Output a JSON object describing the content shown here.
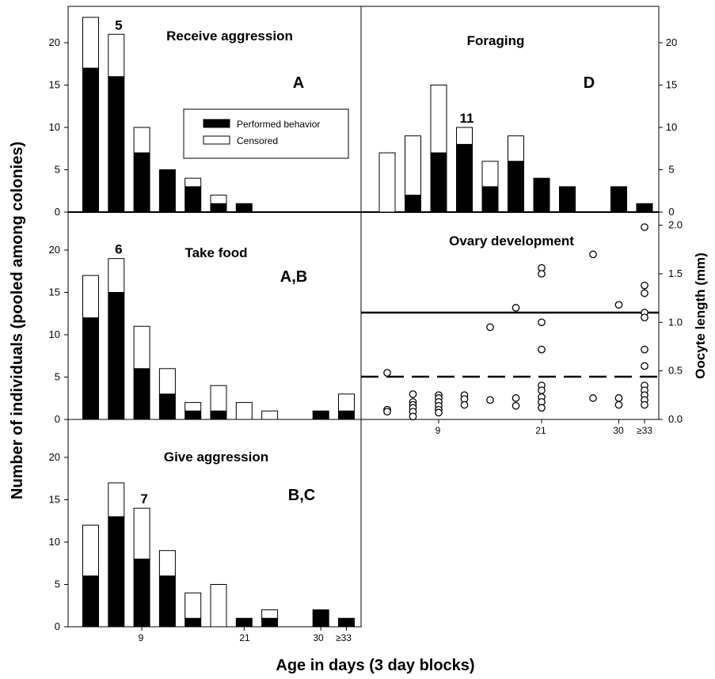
{
  "figure": {
    "ylabel_left": "Number of individuals (pooled among colonies)",
    "ylabel_right": "Oocyte length (mm)",
    "xlabel": "Age in days (3 day blocks)",
    "x_ticks": [
      "9",
      "21",
      "30",
      "≥33"
    ],
    "legend": {
      "performed": "Performed behavior",
      "censored": "Censored"
    },
    "colors": {
      "performed": "#000000",
      "censored": "#ffffff",
      "outline": "#000000"
    }
  },
  "chart_data": [
    {
      "type": "bar",
      "id": "A",
      "title": "Receive aggression",
      "letter": "A",
      "marker": "5",
      "marker_index": 1,
      "ylim": [
        0,
        24
      ],
      "yticks": [
        0,
        5,
        10,
        15,
        20
      ],
      "series": [
        {
          "name": "Performed behavior",
          "values": [
            17,
            16,
            7,
            5,
            3,
            1,
            1,
            0,
            0,
            0,
            0
          ]
        },
        {
          "name": "Censored",
          "values": [
            6,
            5,
            3,
            0,
            1,
            1,
            0,
            0,
            0,
            0,
            0
          ]
        }
      ]
    },
    {
      "type": "bar",
      "id": "B",
      "title": "Take food",
      "letter": "A,B",
      "marker": "6",
      "marker_index": 1,
      "ylim": [
        0,
        24
      ],
      "yticks": [
        0,
        5,
        10,
        15,
        20
      ],
      "series": [
        {
          "name": "Performed behavior",
          "values": [
            12,
            15,
            6,
            3,
            1,
            1,
            0,
            0,
            0,
            1,
            1
          ]
        },
        {
          "name": "Censored",
          "values": [
            5,
            4,
            5,
            3,
            1,
            3,
            2,
            1,
            0,
            0,
            2
          ]
        }
      ]
    },
    {
      "type": "bar",
      "id": "C",
      "title": "Give aggression",
      "letter": "B,C",
      "marker": "7",
      "marker_index": 2,
      "ylim": [
        0,
        24
      ],
      "yticks": [
        0,
        5,
        10,
        15,
        20
      ],
      "series": [
        {
          "name": "Performed behavior",
          "values": [
            6,
            13,
            8,
            6,
            1,
            0,
            1,
            1,
            0,
            2,
            1
          ]
        },
        {
          "name": "Censored",
          "values": [
            6,
            4,
            6,
            3,
            3,
            5,
            0,
            1,
            0,
            0,
            0
          ]
        }
      ]
    },
    {
      "type": "bar",
      "id": "D",
      "title": "Foraging",
      "letter": "D",
      "marker": "11",
      "marker_index": 3,
      "ylim": [
        0,
        24
      ],
      "yticks": [
        0,
        5,
        10,
        15,
        20
      ],
      "series": [
        {
          "name": "Performed behavior",
          "values": [
            0,
            2,
            7,
            8,
            3,
            6,
            4,
            3,
            0,
            3,
            1
          ]
        },
        {
          "name": "Censored",
          "values": [
            7,
            7,
            8,
            2,
            3,
            3,
            0,
            0,
            0,
            0,
            0
          ]
        }
      ]
    },
    {
      "type": "scatter",
      "id": "E",
      "title": "Ovary development",
      "ylim": [
        0,
        2.2
      ],
      "yticks": [
        "0.0",
        "0.5",
        "1.0",
        "1.5",
        "2.0"
      ],
      "hlines": [
        {
          "y": 1.1,
          "style": "solid"
        },
        {
          "y": 0.44,
          "style": "dashed"
        }
      ],
      "points": [
        {
          "x": 0,
          "y": 0.48
        },
        {
          "x": 0,
          "y": 0.1
        },
        {
          "x": 0,
          "y": 0.08
        },
        {
          "x": 1,
          "y": 0.26
        },
        {
          "x": 1,
          "y": 0.18
        },
        {
          "x": 1,
          "y": 0.15
        },
        {
          "x": 1,
          "y": 0.12
        },
        {
          "x": 1,
          "y": 0.08
        },
        {
          "x": 1,
          "y": 0.03
        },
        {
          "x": 2,
          "y": 0.25
        },
        {
          "x": 2,
          "y": 0.22
        },
        {
          "x": 2,
          "y": 0.18
        },
        {
          "x": 2,
          "y": 0.14
        },
        {
          "x": 2,
          "y": 0.1
        },
        {
          "x": 2,
          "y": 0.07
        },
        {
          "x": 3,
          "y": 0.25
        },
        {
          "x": 3,
          "y": 0.21
        },
        {
          "x": 3,
          "y": 0.15
        },
        {
          "x": 4,
          "y": 0.95
        },
        {
          "x": 4,
          "y": 0.2
        },
        {
          "x": 5,
          "y": 1.15
        },
        {
          "x": 5,
          "y": 0.22
        },
        {
          "x": 5,
          "y": 0.14
        },
        {
          "x": 6,
          "y": 1.56
        },
        {
          "x": 6,
          "y": 1.5
        },
        {
          "x": 6,
          "y": 1.0
        },
        {
          "x": 6,
          "y": 0.72
        },
        {
          "x": 6,
          "y": 0.35
        },
        {
          "x": 6,
          "y": 0.3
        },
        {
          "x": 6,
          "y": 0.23
        },
        {
          "x": 6,
          "y": 0.18
        },
        {
          "x": 6,
          "y": 0.12
        },
        {
          "x": 8,
          "y": 1.7
        },
        {
          "x": 8,
          "y": 0.22
        },
        {
          "x": 9,
          "y": 1.18
        },
        {
          "x": 9,
          "y": 0.22
        },
        {
          "x": 9,
          "y": 0.15
        },
        {
          "x": 10,
          "y": 1.98
        },
        {
          "x": 10,
          "y": 1.38
        },
        {
          "x": 10,
          "y": 1.3
        },
        {
          "x": 10,
          "y": 1.1
        },
        {
          "x": 10,
          "y": 1.05
        },
        {
          "x": 10,
          "y": 0.72
        },
        {
          "x": 10,
          "y": 0.55
        },
        {
          "x": 10,
          "y": 0.35
        },
        {
          "x": 10,
          "y": 0.3
        },
        {
          "x": 10,
          "y": 0.25
        },
        {
          "x": 10,
          "y": 0.2
        },
        {
          "x": 10,
          "y": 0.15
        }
      ]
    }
  ]
}
